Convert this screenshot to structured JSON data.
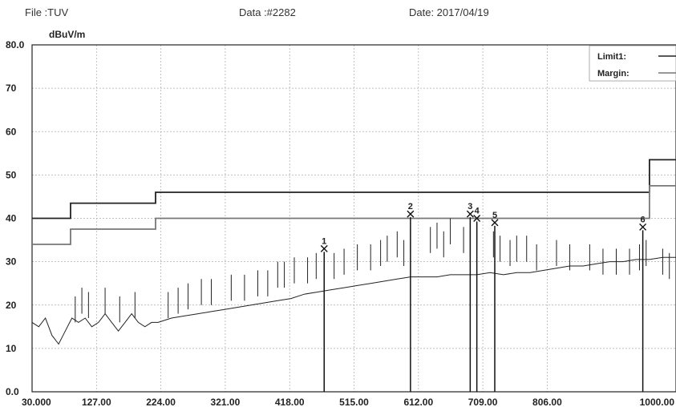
{
  "header": {
    "file": "File :TUV",
    "data": "Data :#2282",
    "date": "Date: 2017/04/19"
  },
  "chart_data": {
    "type": "line",
    "ylabel": "dBuV/m",
    "ylim": [
      0,
      80
    ],
    "xlim": [
      30,
      1000
    ],
    "y_ticks": [
      "80.0",
      "70",
      "60",
      "50",
      "40",
      "30",
      "20",
      "10",
      "0.0"
    ],
    "y_tick_values": [
      80,
      70,
      60,
      50,
      40,
      30,
      20,
      10,
      0
    ],
    "x_ticks": [
      "30.000",
      "127.00",
      "224.00",
      "321.00",
      "418.00",
      "515.00",
      "612.00",
      "709.00",
      "806.00",
      "1000.00"
    ],
    "x_tick_values": [
      30,
      127,
      224,
      321,
      418,
      515,
      612,
      709,
      806,
      1000
    ],
    "grid": true,
    "legend": {
      "position": "top-right",
      "entries": [
        {
          "label": "Limit1:",
          "color": "#222222"
        },
        {
          "label": "Margin:",
          "color": "#777777"
        }
      ]
    },
    "series": [
      {
        "name": "Limit1",
        "color": "#222222",
        "step": true,
        "x": [
          30,
          88,
          88,
          216,
          216,
          960,
          960,
          1000
        ],
        "y": [
          40,
          40,
          43.5,
          43.5,
          46,
          46,
          53.5,
          53.5
        ]
      },
      {
        "name": "Margin",
        "color": "#777777",
        "step": true,
        "x": [
          30,
          88,
          88,
          216,
          216,
          960,
          960,
          1000
        ],
        "y": [
          34,
          34,
          37.5,
          37.5,
          40,
          40,
          47.5,
          47.5
        ]
      },
      {
        "color": "#222222",
        "x": [
          30,
          40,
          50,
          60,
          70,
          80,
          90,
          100,
          110,
          120,
          130,
          140,
          150,
          160,
          170,
          180,
          190,
          200,
          210,
          220,
          240,
          260,
          280,
          300,
          320,
          340,
          360,
          380,
          400,
          420,
          440,
          460,
          480,
          500,
          520,
          540,
          560,
          580,
          600,
          620,
          640,
          660,
          680,
          700,
          720,
          740,
          760,
          780,
          800,
          820,
          840,
          860,
          880,
          900,
          920,
          940,
          960,
          980,
          1000
        ],
        "y": [
          16,
          15,
          17,
          13,
          11,
          14,
          17,
          16,
          17,
          15,
          16,
          18,
          16,
          14,
          16,
          18,
          16,
          15,
          16,
          16,
          17,
          17.5,
          18,
          18.5,
          19,
          19.5,
          20,
          20.5,
          21,
          21.5,
          22.5,
          23,
          23.5,
          24,
          24.5,
          25,
          25.5,
          26,
          26.5,
          26.5,
          26.5,
          27,
          27,
          27,
          27.5,
          27,
          27.5,
          27.5,
          28,
          28.5,
          29,
          29,
          29.5,
          30,
          30,
          30.5,
          30.5,
          31,
          31
        ]
      }
    ],
    "spikes": {
      "x": [
        95,
        105,
        115,
        140,
        162,
        185,
        235,
        250,
        265,
        285,
        300,
        330,
        350,
        370,
        385,
        400,
        410,
        425,
        445,
        458,
        470,
        485,
        500,
        520,
        540,
        555,
        565,
        580,
        590,
        600,
        630,
        640,
        650,
        660,
        680,
        690,
        700,
        725,
        735,
        750,
        760,
        775,
        790,
        820,
        840,
        870,
        890,
        910,
        930,
        945,
        955,
        980,
        990
      ],
      "y": [
        22,
        24,
        23,
        24,
        22,
        23,
        23,
        24,
        25,
        26,
        26,
        27,
        27,
        28,
        28,
        30,
        30,
        31,
        31,
        32,
        32,
        32,
        33,
        34,
        34,
        35,
        36,
        37,
        35,
        38,
        38,
        39,
        37,
        40,
        38,
        37,
        39,
        37,
        36,
        35,
        36,
        36,
        34,
        35,
        34,
        34,
        33,
        33,
        33,
        34,
        35,
        33,
        32
      ]
    },
    "markers": [
      {
        "label": "1",
        "x": 470,
        "y": 33
      },
      {
        "label": "2",
        "x": 600,
        "y": 41
      },
      {
        "label": "3",
        "x": 690,
        "y": 41
      },
      {
        "label": "4",
        "x": 700,
        "y": 40
      },
      {
        "label": "5",
        "x": 727,
        "y": 39
      },
      {
        "label": "6",
        "x": 950,
        "y": 38
      }
    ]
  }
}
